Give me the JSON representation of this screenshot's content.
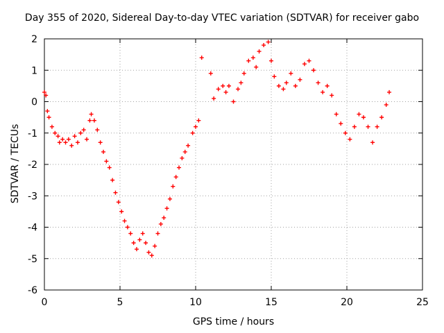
{
  "chart_data": {
    "type": "scatter",
    "title": "Day 355 of 2020, Sidereal Day-to-day VTEC variation (SDTVAR) for receiver gabo",
    "xlabel": "GPS time / hours",
    "ylabel": "SDTVAR / TECUs",
    "xlim": [
      0,
      25
    ],
    "ylim": [
      -6,
      2
    ],
    "xticks": [
      "0",
      "5",
      "10",
      "15",
      "20",
      "25"
    ],
    "yticks": [
      "2",
      "1",
      "0",
      "-1",
      "-2",
      "-3",
      "-4",
      "-5",
      "-6"
    ],
    "grid": true,
    "marker": "+",
    "color": "#ff0000",
    "series": [
      {
        "name": "SDTVAR",
        "points": [
          [
            0.0,
            0.3
          ],
          [
            0.1,
            0.2
          ],
          [
            0.2,
            -0.3
          ],
          [
            0.3,
            -0.5
          ],
          [
            0.5,
            -0.8
          ],
          [
            0.7,
            -1.0
          ],
          [
            0.9,
            -1.1
          ],
          [
            1.0,
            -1.3
          ],
          [
            1.2,
            -1.2
          ],
          [
            1.4,
            -1.3
          ],
          [
            1.6,
            -1.2
          ],
          [
            1.8,
            -1.4
          ],
          [
            2.0,
            -1.1
          ],
          [
            2.2,
            -1.3
          ],
          [
            2.4,
            -1.0
          ],
          [
            2.6,
            -0.9
          ],
          [
            2.8,
            -1.2
          ],
          [
            3.0,
            -0.6
          ],
          [
            3.1,
            -0.4
          ],
          [
            3.3,
            -0.6
          ],
          [
            3.5,
            -0.9
          ],
          [
            3.7,
            -1.3
          ],
          [
            3.9,
            -1.6
          ],
          [
            4.1,
            -1.9
          ],
          [
            4.3,
            -2.1
          ],
          [
            4.5,
            -2.5
          ],
          [
            4.7,
            -2.9
          ],
          [
            4.9,
            -3.2
          ],
          [
            5.1,
            -3.5
          ],
          [
            5.3,
            -3.8
          ],
          [
            5.5,
            -4.0
          ],
          [
            5.7,
            -4.2
          ],
          [
            5.9,
            -4.5
          ],
          [
            6.1,
            -4.7
          ],
          [
            6.3,
            -4.4
          ],
          [
            6.5,
            -4.2
          ],
          [
            6.7,
            -4.5
          ],
          [
            6.9,
            -4.8
          ],
          [
            7.1,
            -4.9
          ],
          [
            7.3,
            -4.6
          ],
          [
            7.5,
            -4.2
          ],
          [
            7.7,
            -3.9
          ],
          [
            7.9,
            -3.7
          ],
          [
            8.1,
            -3.4
          ],
          [
            8.3,
            -3.1
          ],
          [
            8.5,
            -2.7
          ],
          [
            8.7,
            -2.4
          ],
          [
            8.9,
            -2.1
          ],
          [
            9.1,
            -1.8
          ],
          [
            9.3,
            -1.6
          ],
          [
            9.5,
            -1.4
          ],
          [
            9.8,
            -1.0
          ],
          [
            10.0,
            -0.8
          ],
          [
            10.2,
            -0.6
          ],
          [
            10.4,
            1.4
          ],
          [
            11.0,
            0.9
          ],
          [
            11.2,
            0.1
          ],
          [
            11.5,
            0.4
          ],
          [
            11.8,
            0.5
          ],
          [
            12.0,
            0.3
          ],
          [
            12.2,
            0.5
          ],
          [
            12.5,
            0.0
          ],
          [
            12.8,
            0.4
          ],
          [
            13.0,
            0.6
          ],
          [
            13.2,
            0.9
          ],
          [
            13.5,
            1.3
          ],
          [
            13.8,
            1.4
          ],
          [
            14.0,
            1.1
          ],
          [
            14.2,
            1.6
          ],
          [
            14.5,
            1.8
          ],
          [
            14.8,
            1.9
          ],
          [
            15.0,
            1.3
          ],
          [
            15.2,
            0.8
          ],
          [
            15.5,
            0.5
          ],
          [
            15.8,
            0.4
          ],
          [
            16.0,
            0.6
          ],
          [
            16.3,
            0.9
          ],
          [
            16.6,
            0.5
          ],
          [
            16.9,
            0.7
          ],
          [
            17.2,
            1.2
          ],
          [
            17.5,
            1.3
          ],
          [
            17.8,
            1.0
          ],
          [
            18.1,
            0.6
          ],
          [
            18.4,
            0.3
          ],
          [
            18.7,
            0.5
          ],
          [
            19.0,
            0.2
          ],
          [
            19.3,
            -0.4
          ],
          [
            19.6,
            -0.7
          ],
          [
            19.9,
            -1.0
          ],
          [
            20.2,
            -1.2
          ],
          [
            20.5,
            -0.8
          ],
          [
            20.8,
            -0.4
          ],
          [
            21.1,
            -0.5
          ],
          [
            21.4,
            -0.8
          ],
          [
            21.7,
            -1.3
          ],
          [
            22.0,
            -0.8
          ],
          [
            22.3,
            -0.5
          ],
          [
            22.6,
            -0.1
          ],
          [
            22.8,
            0.3
          ]
        ]
      }
    ]
  }
}
